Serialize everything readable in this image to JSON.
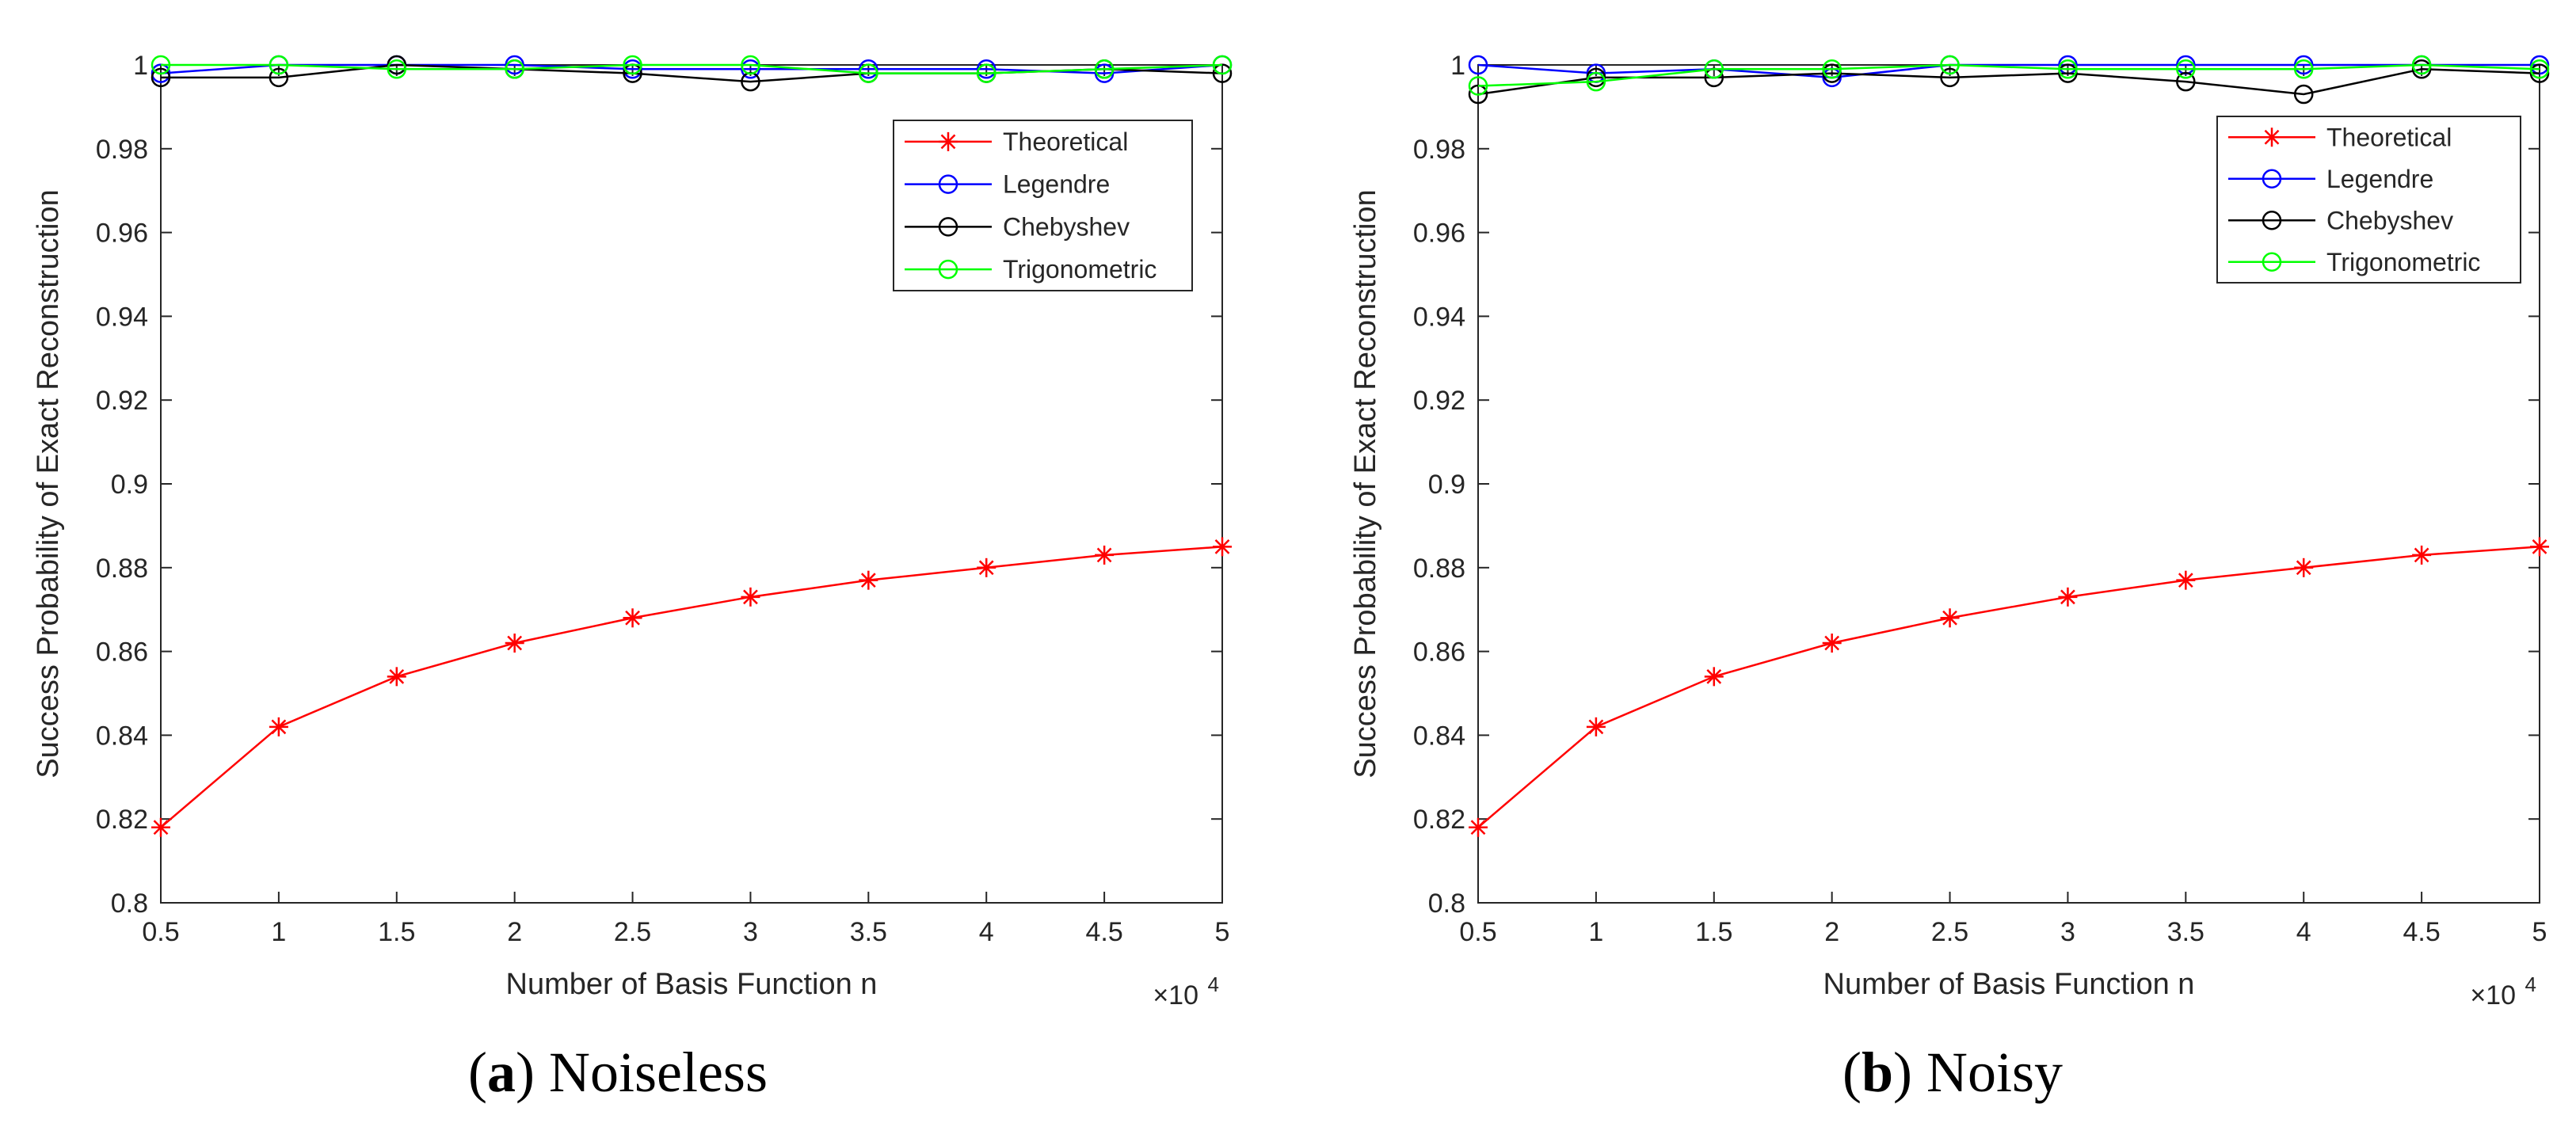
{
  "chart_data": [
    {
      "type": "line",
      "caption_letter": "(a)",
      "caption_text": "Noiseless",
      "xlabel": "Number of Basis Function n",
      "ylabel": "Success Probability of Exact Reconstruction",
      "x_exponent_base": "×10",
      "x_exponent_power": "4",
      "xlim": [
        0.5,
        5
      ],
      "ylim": [
        0.8,
        1.0
      ],
      "xticks": [
        0.5,
        1,
        1.5,
        2,
        2.5,
        3,
        3.5,
        4,
        4.5,
        5
      ],
      "yticks": [
        0.8,
        0.82,
        0.84,
        0.86,
        0.88,
        0.9,
        0.92,
        0.94,
        0.96,
        0.98,
        1
      ],
      "x": [
        0.5,
        1,
        1.5,
        2,
        2.5,
        3,
        3.5,
        4,
        4.5,
        5
      ],
      "legend_position": "top-right",
      "series": [
        {
          "name": "Theoretical",
          "color": "#ff0000",
          "marker": "asterisk",
          "values": [
            0.818,
            0.842,
            0.854,
            0.862,
            0.868,
            0.873,
            0.877,
            0.88,
            0.883,
            0.885
          ]
        },
        {
          "name": "Legendre",
          "color": "#0000ff",
          "marker": "circle",
          "values": [
            0.998,
            1.0,
            1.0,
            1.0,
            0.999,
            0.999,
            0.999,
            0.999,
            0.998,
            1.0
          ]
        },
        {
          "name": "Chebyshev",
          "color": "#000000",
          "marker": "circle",
          "values": [
            0.997,
            0.997,
            1.0,
            0.999,
            0.998,
            0.996,
            0.998,
            0.998,
            0.999,
            0.998
          ]
        },
        {
          "name": "Trigonometric",
          "color": "#00ff00",
          "marker": "circle",
          "values": [
            1.0,
            1.0,
            0.999,
            0.999,
            1.0,
            1.0,
            0.998,
            0.998,
            0.999,
            1.0
          ]
        }
      ]
    },
    {
      "type": "line",
      "caption_letter": "(b)",
      "caption_text": "Noisy",
      "xlabel": "Number of Basis Function n",
      "ylabel": "Success Probability of Exact Reconstruction",
      "x_exponent_base": "×10",
      "x_exponent_power": "4",
      "xlim": [
        0.5,
        5
      ],
      "ylim": [
        0.8,
        1.0
      ],
      "xticks": [
        0.5,
        1,
        1.5,
        2,
        2.5,
        3,
        3.5,
        4,
        4.5,
        5
      ],
      "yticks": [
        0.8,
        0.82,
        0.84,
        0.86,
        0.88,
        0.9,
        0.92,
        0.94,
        0.96,
        0.98,
        1
      ],
      "x": [
        0.5,
        1,
        1.5,
        2,
        2.5,
        3,
        3.5,
        4,
        4.5,
        5
      ],
      "legend_position": "top-right",
      "series": [
        {
          "name": "Theoretical",
          "color": "#ff0000",
          "marker": "asterisk",
          "values": [
            0.818,
            0.842,
            0.854,
            0.862,
            0.868,
            0.873,
            0.877,
            0.88,
            0.883,
            0.885
          ]
        },
        {
          "name": "Legendre",
          "color": "#0000ff",
          "marker": "circle",
          "values": [
            1.0,
            0.998,
            0.999,
            0.997,
            1.0,
            1.0,
            1.0,
            1.0,
            1.0,
            1.0
          ]
        },
        {
          "name": "Chebyshev",
          "color": "#000000",
          "marker": "circle",
          "values": [
            0.993,
            0.997,
            0.997,
            0.998,
            0.997,
            0.998,
            0.996,
            0.993,
            0.999,
            0.998
          ]
        },
        {
          "name": "Trigonometric",
          "color": "#00ff00",
          "marker": "circle",
          "values": [
            0.995,
            0.996,
            0.999,
            0.999,
            1.0,
            0.999,
            0.999,
            0.999,
            1.0,
            0.999
          ]
        }
      ]
    }
  ]
}
